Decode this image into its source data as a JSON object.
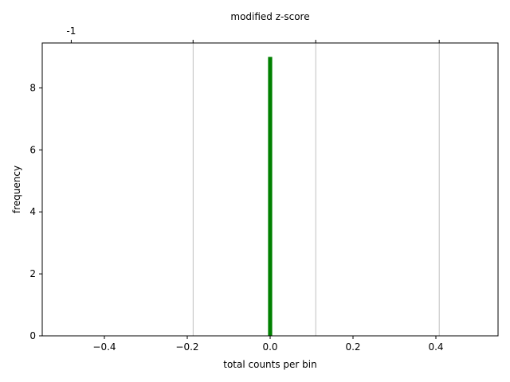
{
  "chart_data": {
    "type": "bar",
    "xlabel": "total counts per bin",
    "ylabel": "frequency",
    "top_axis_label": "modified z-score",
    "xlim": [
      -0.55,
      0.55
    ],
    "ylim": [
      0,
      9.45
    ],
    "x_ticks": [
      -0.4,
      -0.2,
      0.0,
      0.2,
      0.4
    ],
    "x_tick_labels": [
      "−0.4",
      "−0.2",
      "0.0",
      "0.2",
      "0.4"
    ],
    "y_ticks": [
      0,
      2,
      4,
      6,
      8
    ],
    "y_tick_labels": [
      "0",
      "2",
      "4",
      "6",
      "8"
    ],
    "top_ticks": [
      -0.48
    ],
    "top_tick_labels": [
      "-1"
    ],
    "vertical_gridlines": [
      -0.186,
      0.11,
      0.408
    ],
    "bins": [
      {
        "x_start": -0.005,
        "x_end": 0.005,
        "count": 9
      }
    ],
    "bar_color": "#008000",
    "grid_color": "#b0b0b0"
  }
}
